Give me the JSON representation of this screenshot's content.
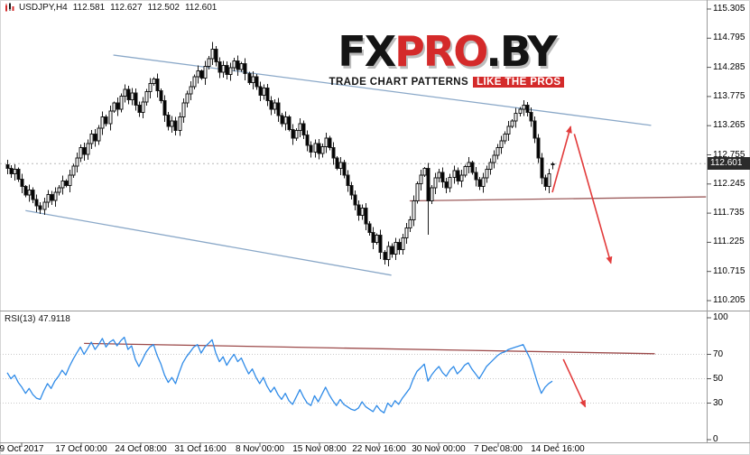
{
  "symbol_line": {
    "symbol": "USDJPY,H4",
    "open": "112.581",
    "high": "112.627",
    "low": "112.502",
    "close": "112.601"
  },
  "logo": {
    "fx": "FX",
    "pro": "PRO",
    "by": ".BY",
    "tagline_plain": "TRADE CHART PATTERNS",
    "tagline_highlight": "LIKE THE PROS"
  },
  "price_tag": "112.601",
  "rsi_label": {
    "name": "RSI(13)",
    "value": "47.9118"
  },
  "chart_data": [
    {
      "type": "candlestick",
      "symbol": "USDJPY",
      "timeframe": "H4",
      "title": "USDJPY,H4 112.581 112.627 112.502 112.601",
      "ylim": [
        110.205,
        115.305
      ],
      "y_ticks": [
        "115.305",
        "114.795",
        "114.285",
        "113.775",
        "113.265",
        "112.755",
        "112.245",
        "111.735",
        "111.225",
        "110.715",
        "110.205"
      ],
      "x_labels": [
        "9 Oct 2017",
        "17 Oct 00:00",
        "24 Oct 08:00",
        "31 Oct 16:00",
        "8 Nov 00:00",
        "15 Nov 08:00",
        "22 Nov 16:00",
        "30 Nov 00:00",
        "7 Dec 08:00",
        "14 Dec 16:00"
      ],
      "open_first": 112.58,
      "closes": [
        112.52,
        112.42,
        112.5,
        112.33,
        112.2,
        112.05,
        112.14,
        111.97,
        111.86,
        111.8,
        111.93,
        112.06,
        111.96,
        112.1,
        112.18,
        112.3,
        112.22,
        112.4,
        112.56,
        112.7,
        112.88,
        112.76,
        112.95,
        113.12,
        113.0,
        113.22,
        113.42,
        113.3,
        113.52,
        113.66,
        113.55,
        113.78,
        113.9,
        113.72,
        113.84,
        113.62,
        113.5,
        113.68,
        113.86,
        114.0,
        114.08,
        113.88,
        113.7,
        113.45,
        113.25,
        113.35,
        113.18,
        113.42,
        113.66,
        113.82,
        113.95,
        114.12,
        114.22,
        114.1,
        114.3,
        114.44,
        114.6,
        114.38,
        114.2,
        114.32,
        114.16,
        114.28,
        114.4,
        114.25,
        114.35,
        114.18,
        114.02,
        114.12,
        113.95,
        113.8,
        113.92,
        113.7,
        113.55,
        113.66,
        113.44,
        113.3,
        113.42,
        113.2,
        113.05,
        113.18,
        113.3,
        113.1,
        112.92,
        112.8,
        112.95,
        112.78,
        112.9,
        113.05,
        112.88,
        112.7,
        112.52,
        112.62,
        112.4,
        112.22,
        112.05,
        111.88,
        111.7,
        111.82,
        111.55,
        111.4,
        111.22,
        111.35,
        111.05,
        110.92,
        111.15,
        111.02,
        111.22,
        111.1,
        111.3,
        111.48,
        111.62,
        111.95,
        112.25,
        112.4,
        112.52,
        111.95,
        112.18,
        112.35,
        112.45,
        112.28,
        112.18,
        112.36,
        112.48,
        112.3,
        112.4,
        112.55,
        112.62,
        112.45,
        112.32,
        112.2,
        112.35,
        112.5,
        112.62,
        112.75,
        112.88,
        113.0,
        113.12,
        113.25,
        113.35,
        113.48,
        113.55,
        113.62,
        113.5,
        113.35,
        113.05,
        112.7,
        112.35,
        112.2,
        112.42,
        112.601
      ],
      "wick_overrides": {
        "9": {
          "low": 111.72
        },
        "56": {
          "high": 114.73
        },
        "103": {
          "low": 110.84
        },
        "115": {
          "low": 111.36
        },
        "149": {
          "open": 112.581,
          "high": 112.627,
          "low": 112.502,
          "close": 112.601
        }
      },
      "ohlc_current": {
        "open": 112.581,
        "high": 112.627,
        "low": 112.502,
        "close": 112.601
      },
      "key_points": [
        {
          "name": "october-november-high",
          "price": 114.73
        },
        {
          "name": "late-november-low",
          "price": 110.84
        },
        {
          "name": "last-price",
          "price": 112.601
        }
      ]
    },
    {
      "type": "line",
      "name": "RSI(13)",
      "current_value": 47.9118,
      "ylim": [
        0,
        100
      ],
      "y_ticks": [
        "100",
        "70",
        "50",
        "30",
        "0"
      ],
      "levels": [
        70,
        50,
        30
      ],
      "values": [
        55,
        50,
        53,
        47,
        43,
        38,
        42,
        37,
        34,
        33,
        40,
        46,
        42,
        48,
        52,
        57,
        53,
        60,
        66,
        71,
        76,
        70,
        75,
        80,
        74,
        78,
        83,
        76,
        80,
        82,
        77,
        81,
        84,
        74,
        77,
        66,
        60,
        66,
        72,
        76,
        78,
        69,
        62,
        53,
        47,
        51,
        46,
        55,
        63,
        68,
        72,
        76,
        78,
        71,
        76,
        79,
        82,
        71,
        64,
        68,
        61,
        66,
        70,
        64,
        67,
        60,
        54,
        58,
        51,
        46,
        51,
        44,
        39,
        43,
        37,
        33,
        38,
        32,
        29,
        35,
        41,
        35,
        30,
        28,
        36,
        31,
        37,
        43,
        37,
        32,
        28,
        33,
        29,
        27,
        25,
        24,
        26,
        31,
        27,
        25,
        23,
        28,
        24,
        22,
        30,
        27,
        32,
        29,
        34,
        38,
        42,
        50,
        56,
        59,
        62,
        48,
        53,
        57,
        60,
        55,
        52,
        57,
        60,
        54,
        57,
        61,
        63,
        58,
        54,
        50,
        55,
        60,
        63,
        66,
        69,
        71,
        72,
        74,
        75,
        76,
        77,
        78,
        72,
        66,
        56,
        46,
        38,
        43,
        46,
        48
      ]
    }
  ],
  "annotations": {
    "trendlines": [
      {
        "name": "upper-channel",
        "pane": "price",
        "color": "#8aa8c8",
        "from": {
          "i": 29,
          "v": 114.5
        },
        "to": {
          "i": 176,
          "v": 113.27
        }
      },
      {
        "name": "lower-channel",
        "pane": "price",
        "color": "#8aa8c8",
        "from": {
          "i": 5,
          "v": 111.78
        },
        "to": {
          "i": 105,
          "v": 110.65
        }
      },
      {
        "name": "support-line",
        "pane": "price",
        "color": "#9c5b5b",
        "from": {
          "i": 110,
          "v": 111.95
        },
        "to": {
          "i": 191,
          "v": 112.02
        }
      },
      {
        "name": "rsi-resistance",
        "pane": "rsi",
        "color": "#9c4a4a",
        "from": {
          "i": 21,
          "v": 79
        },
        "to": {
          "i": 177,
          "v": 70.5
        }
      }
    ],
    "arrows": [
      {
        "name": "forecast-up",
        "pane": "price",
        "color": "#e23b3b",
        "from": {
          "i": 149,
          "v": 112.1
        },
        "to": {
          "i": 154,
          "v": 113.25
        }
      },
      {
        "name": "forecast-down",
        "pane": "price",
        "color": "#e23b3b",
        "from": {
          "i": 155,
          "v": 113.12
        },
        "to": {
          "i": 165,
          "v": 110.86
        }
      },
      {
        "name": "rsi-forecast-down",
        "pane": "rsi",
        "color": "#e23b3b",
        "from": {
          "i": 152,
          "v": 66
        },
        "to": {
          "i": 158,
          "v": 27
        }
      }
    ]
  },
  "colors": {
    "background": "#ffffff",
    "candle_up": "#ffffff",
    "candle_down": "#000000",
    "candle_border": "#1a1a1a",
    "rsi_line": "#2f8be8",
    "grid": "#c9c9c9",
    "last_price_line": "#b8b8b8",
    "scale_line": "#9a9a9a",
    "tick": "#555555",
    "axis_text": "#000000",
    "price_tag_bg": "#2b2b2b",
    "price_tag_text": "#ffffff",
    "logo_black": "#141414",
    "logo_red": "#d42a2a",
    "arrow_red": "#e23b3b",
    "trend_blue": "#8aa8c8",
    "trend_maroon": "#9c5b5b"
  }
}
